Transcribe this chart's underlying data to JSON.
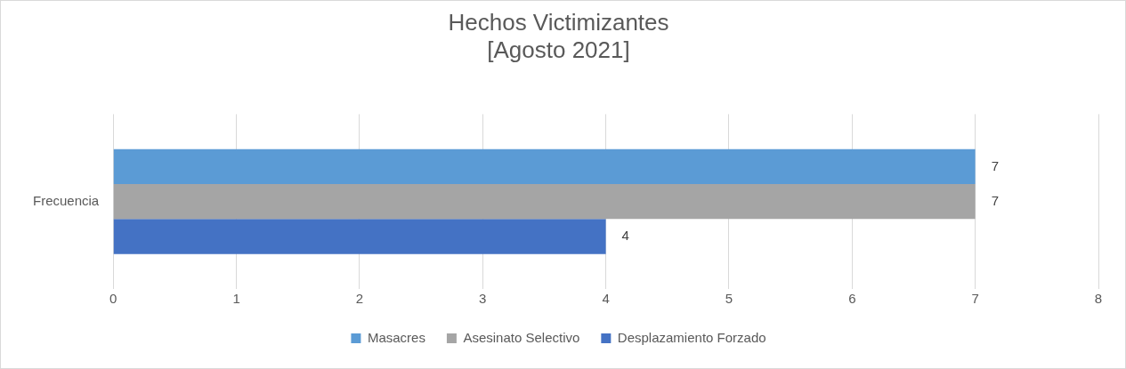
{
  "chart_data": {
    "type": "bar",
    "orientation": "horizontal",
    "title": "Hechos Victimizantes\n[Agosto 2021]",
    "categories": [
      "Frecuencia"
    ],
    "series": [
      {
        "name": "Masacres",
        "color": "#5b9bd5",
        "values": [
          7
        ]
      },
      {
        "name": "Asesinato Selectivo",
        "color": "#a5a5a5",
        "values": [
          7
        ]
      },
      {
        "name": "Desplazamiento Forzado",
        "color": "#4472c4",
        "values": [
          4
        ]
      }
    ],
    "xlim": [
      0,
      8
    ],
    "xticks": [
      0,
      1,
      2,
      3,
      4,
      5,
      6,
      7,
      8
    ],
    "grid": "x",
    "legend": "bottom",
    "data_labels": true
  }
}
